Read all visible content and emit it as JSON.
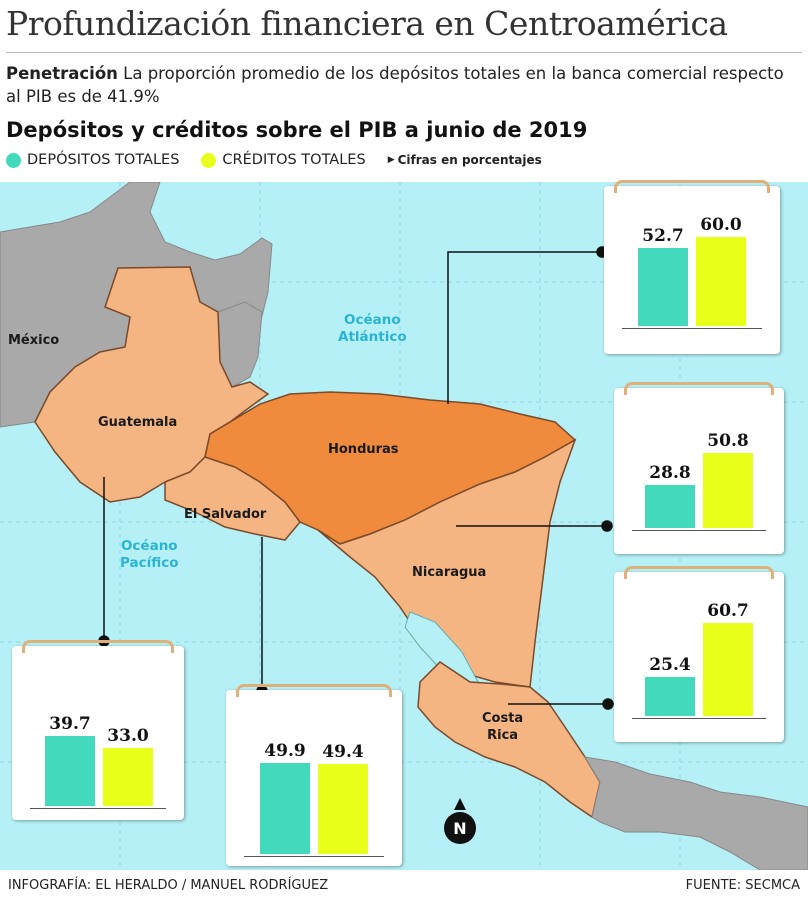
{
  "header": {
    "title": "Profundización financiera en Centroamérica",
    "subtitle_bold": "Penetración",
    "subtitle_text": " La proporción promedio de los depósitos totales en la banca comercial respecto al PIB es de 41.9%"
  },
  "chart_heading": "Depósitos y créditos sobre el PIB a junio de 2019",
  "legend": {
    "deposits_label": "DEPÓSITOS TOTALES",
    "credits_label": "CRÉDITOS TOTALES",
    "note": "Cifras en porcentajes"
  },
  "colors": {
    "deposits": "#43d9bd",
    "credits": "#e8ff1a",
    "sea": "#b5f0f6",
    "land_other": "#a9a9a9",
    "land_ca": "#f4b583",
    "honduras": "#f08a3c"
  },
  "map_labels": {
    "mexico": "México",
    "guatemala": "Guatemala",
    "el_salvador": "El Salvador",
    "honduras": "Honduras",
    "nicaragua": "Nicaragua",
    "costa_rica_1": "Costa",
    "costa_rica_2": "Rica",
    "atlantic_1": "Océano",
    "atlantic_2": "Atlántico",
    "pacific_1": "Océano",
    "pacific_2": "Pacífico"
  },
  "compass_letter": "N",
  "chart_data": {
    "type": "bar",
    "title": "Depósitos y créditos sobre el PIB a junio de 2019",
    "units": "Cifras en porcentajes",
    "categories": [
      "Honduras",
      "Nicaragua",
      "Costa Rica",
      "Guatemala",
      "El Salvador"
    ],
    "series": [
      {
        "name": "DEPÓSITOS TOTALES",
        "values": [
          52.7,
          28.8,
          25.4,
          39.7,
          49.9
        ]
      },
      {
        "name": "CRÉDITOS TOTALES",
        "values": [
          60.0,
          50.8,
          60.7,
          33.0,
          49.4
        ]
      }
    ],
    "ylim": [
      0,
      65
    ]
  },
  "footer": {
    "credit": "INFOGRAFÍA: EL HERALDO / MANUEL RODRÍGUEZ",
    "source": "FUENTE: SECMCA"
  }
}
